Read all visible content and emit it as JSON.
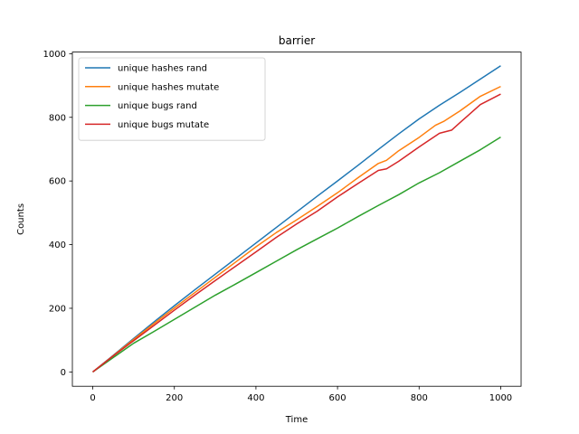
{
  "chart_data": {
    "type": "line",
    "title": "barrier",
    "xlabel": "Time",
    "ylabel": "Counts",
    "xlim": [
      -50,
      1050
    ],
    "ylim": [
      -45,
      1005
    ],
    "xticks": [
      0,
      200,
      400,
      600,
      800,
      1000
    ],
    "yticks": [
      0,
      200,
      400,
      600,
      800,
      1000
    ],
    "grid": false,
    "legend_position": "upper-left",
    "series": [
      {
        "name": "unique hashes rand",
        "color": "#1f77b4",
        "x": [
          0,
          50,
          100,
          150,
          200,
          250,
          300,
          350,
          400,
          450,
          500,
          550,
          600,
          650,
          700,
          750,
          800,
          850,
          900,
          950,
          1000
        ],
        "y": [
          0,
          52,
          105,
          157,
          208,
          258,
          307,
          356,
          405,
          454,
          503,
          552,
          600,
          649,
          699,
          748,
          795,
          838,
          878,
          920,
          962
        ]
      },
      {
        "name": "unique hashes mutate",
        "color": "#ff7f0e",
        "x": [
          0,
          50,
          100,
          150,
          200,
          250,
          300,
          350,
          400,
          450,
          500,
          550,
          600,
          650,
          700,
          720,
          750,
          800,
          840,
          860,
          900,
          950,
          1000
        ],
        "y": [
          0,
          51,
          102,
          152,
          201,
          249,
          297,
          345,
          393,
          438,
          478,
          520,
          563,
          610,
          655,
          665,
          695,
          737,
          775,
          787,
          820,
          866,
          897
        ]
      },
      {
        "name": "unique bugs rand",
        "color": "#2ca02c",
        "x": [
          0,
          50,
          100,
          150,
          200,
          250,
          300,
          350,
          400,
          450,
          500,
          550,
          600,
          650,
          700,
          750,
          800,
          850,
          900,
          950,
          1000
        ],
        "y": [
          0,
          45,
          90,
          127,
          165,
          203,
          241,
          276,
          312,
          348,
          384,
          418,
          452,
          488,
          523,
          557,
          594,
          626,
          662,
          698,
          738
        ]
      },
      {
        "name": "unique bugs mutate",
        "color": "#d62728",
        "x": [
          0,
          50,
          100,
          150,
          200,
          250,
          300,
          350,
          400,
          450,
          500,
          550,
          600,
          650,
          700,
          720,
          750,
          800,
          850,
          880,
          900,
          950,
          1000
        ],
        "y": [
          0,
          50,
          98,
          146,
          194,
          241,
          287,
          332,
          377,
          423,
          465,
          505,
          550,
          592,
          633,
          638,
          662,
          707,
          750,
          760,
          783,
          840,
          873
        ]
      }
    ]
  }
}
